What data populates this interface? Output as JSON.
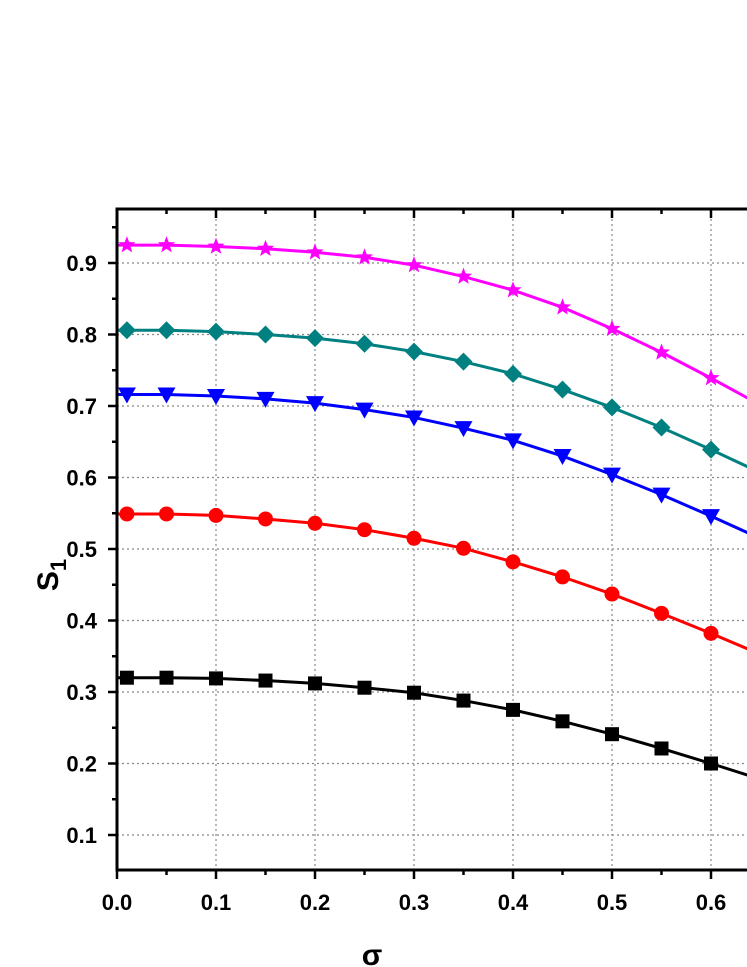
{
  "chart_data": {
    "type": "line",
    "title": "",
    "xlabel": "σ",
    "ylabel": "S",
    "ylabel_subscript": "1",
    "xlim": [
      0,
      0.7
    ],
    "ylim": [
      0.05,
      0.975
    ],
    "grid": true,
    "legend": "none",
    "x_ticks": [
      "0.0",
      "0.1",
      "0.2",
      "0.3",
      "0.4",
      "0.5",
      "0.6"
    ],
    "y_ticks": [
      "0.1",
      "0.2",
      "0.3",
      "0.4",
      "0.5",
      "0.6",
      "0.7",
      "0.8",
      "0.9"
    ],
    "x": [
      0.01,
      0.05,
      0.1,
      0.15,
      0.2,
      0.25,
      0.3,
      0.35,
      0.4,
      0.45,
      0.5,
      0.55,
      0.6
    ],
    "series": [
      {
        "color": "#000000",
        "marker": "square",
        "values": [
          0.32,
          0.32,
          0.319,
          0.316,
          0.312,
          0.306,
          0.299,
          0.288,
          0.275,
          0.259,
          0.241,
          0.221,
          0.2
        ]
      },
      {
        "color": "#ff0000",
        "marker": "circle",
        "values": [
          0.549,
          0.549,
          0.547,
          0.542,
          0.536,
          0.527,
          0.515,
          0.501,
          0.482,
          0.461,
          0.437,
          0.41,
          0.382
        ]
      },
      {
        "color": "#0000ff",
        "marker": "triangle-down",
        "values": [
          0.716,
          0.716,
          0.714,
          0.71,
          0.704,
          0.695,
          0.684,
          0.669,
          0.652,
          0.63,
          0.604,
          0.576,
          0.546
        ]
      },
      {
        "color": "#008080",
        "marker": "diamond",
        "values": [
          0.806,
          0.806,
          0.804,
          0.8,
          0.795,
          0.787,
          0.776,
          0.762,
          0.745,
          0.723,
          0.698,
          0.67,
          0.639
        ]
      },
      {
        "color": "#ff00ff",
        "marker": "star",
        "values": [
          0.925,
          0.925,
          0.923,
          0.92,
          0.915,
          0.908,
          0.897,
          0.881,
          0.862,
          0.838,
          0.808,
          0.775,
          0.739
        ]
      }
    ]
  }
}
